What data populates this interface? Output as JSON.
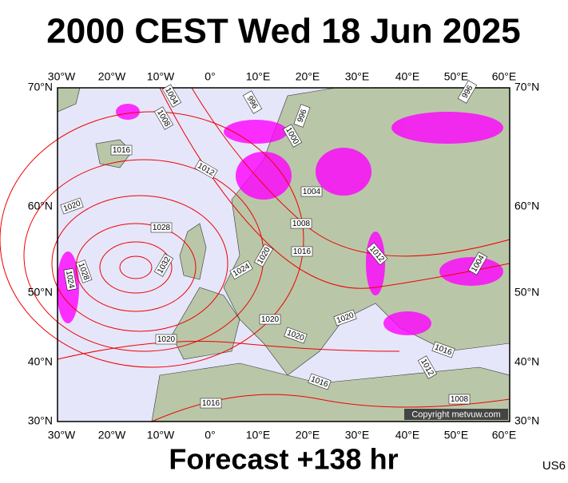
{
  "title": "2000 CEST Wed 18 Jun 2025",
  "footer": "Forecast +138 hr",
  "model_code": "US6",
  "copyright": "Copyright metvuw.com",
  "longitude_labels": [
    "30°W",
    "20°W",
    "10°W",
    "0°",
    "10°E",
    "20°E",
    "30°E",
    "40°E",
    "50°E",
    "60°E"
  ],
  "latitude_labels": [
    "70°N",
    "60°N",
    "50°N",
    "40°N",
    "30°N"
  ],
  "isobar_labels": [
    1004,
    1008,
    1016,
    1012,
    1020,
    1028,
    1032,
    1028,
    1024,
    1024,
    1020,
    996,
    996,
    1000,
    1004,
    1008,
    1016,
    1012,
    1004,
    1020,
    1020,
    1020,
    1020,
    1016,
    1012,
    1016,
    1016,
    1008,
    996
  ]
}
